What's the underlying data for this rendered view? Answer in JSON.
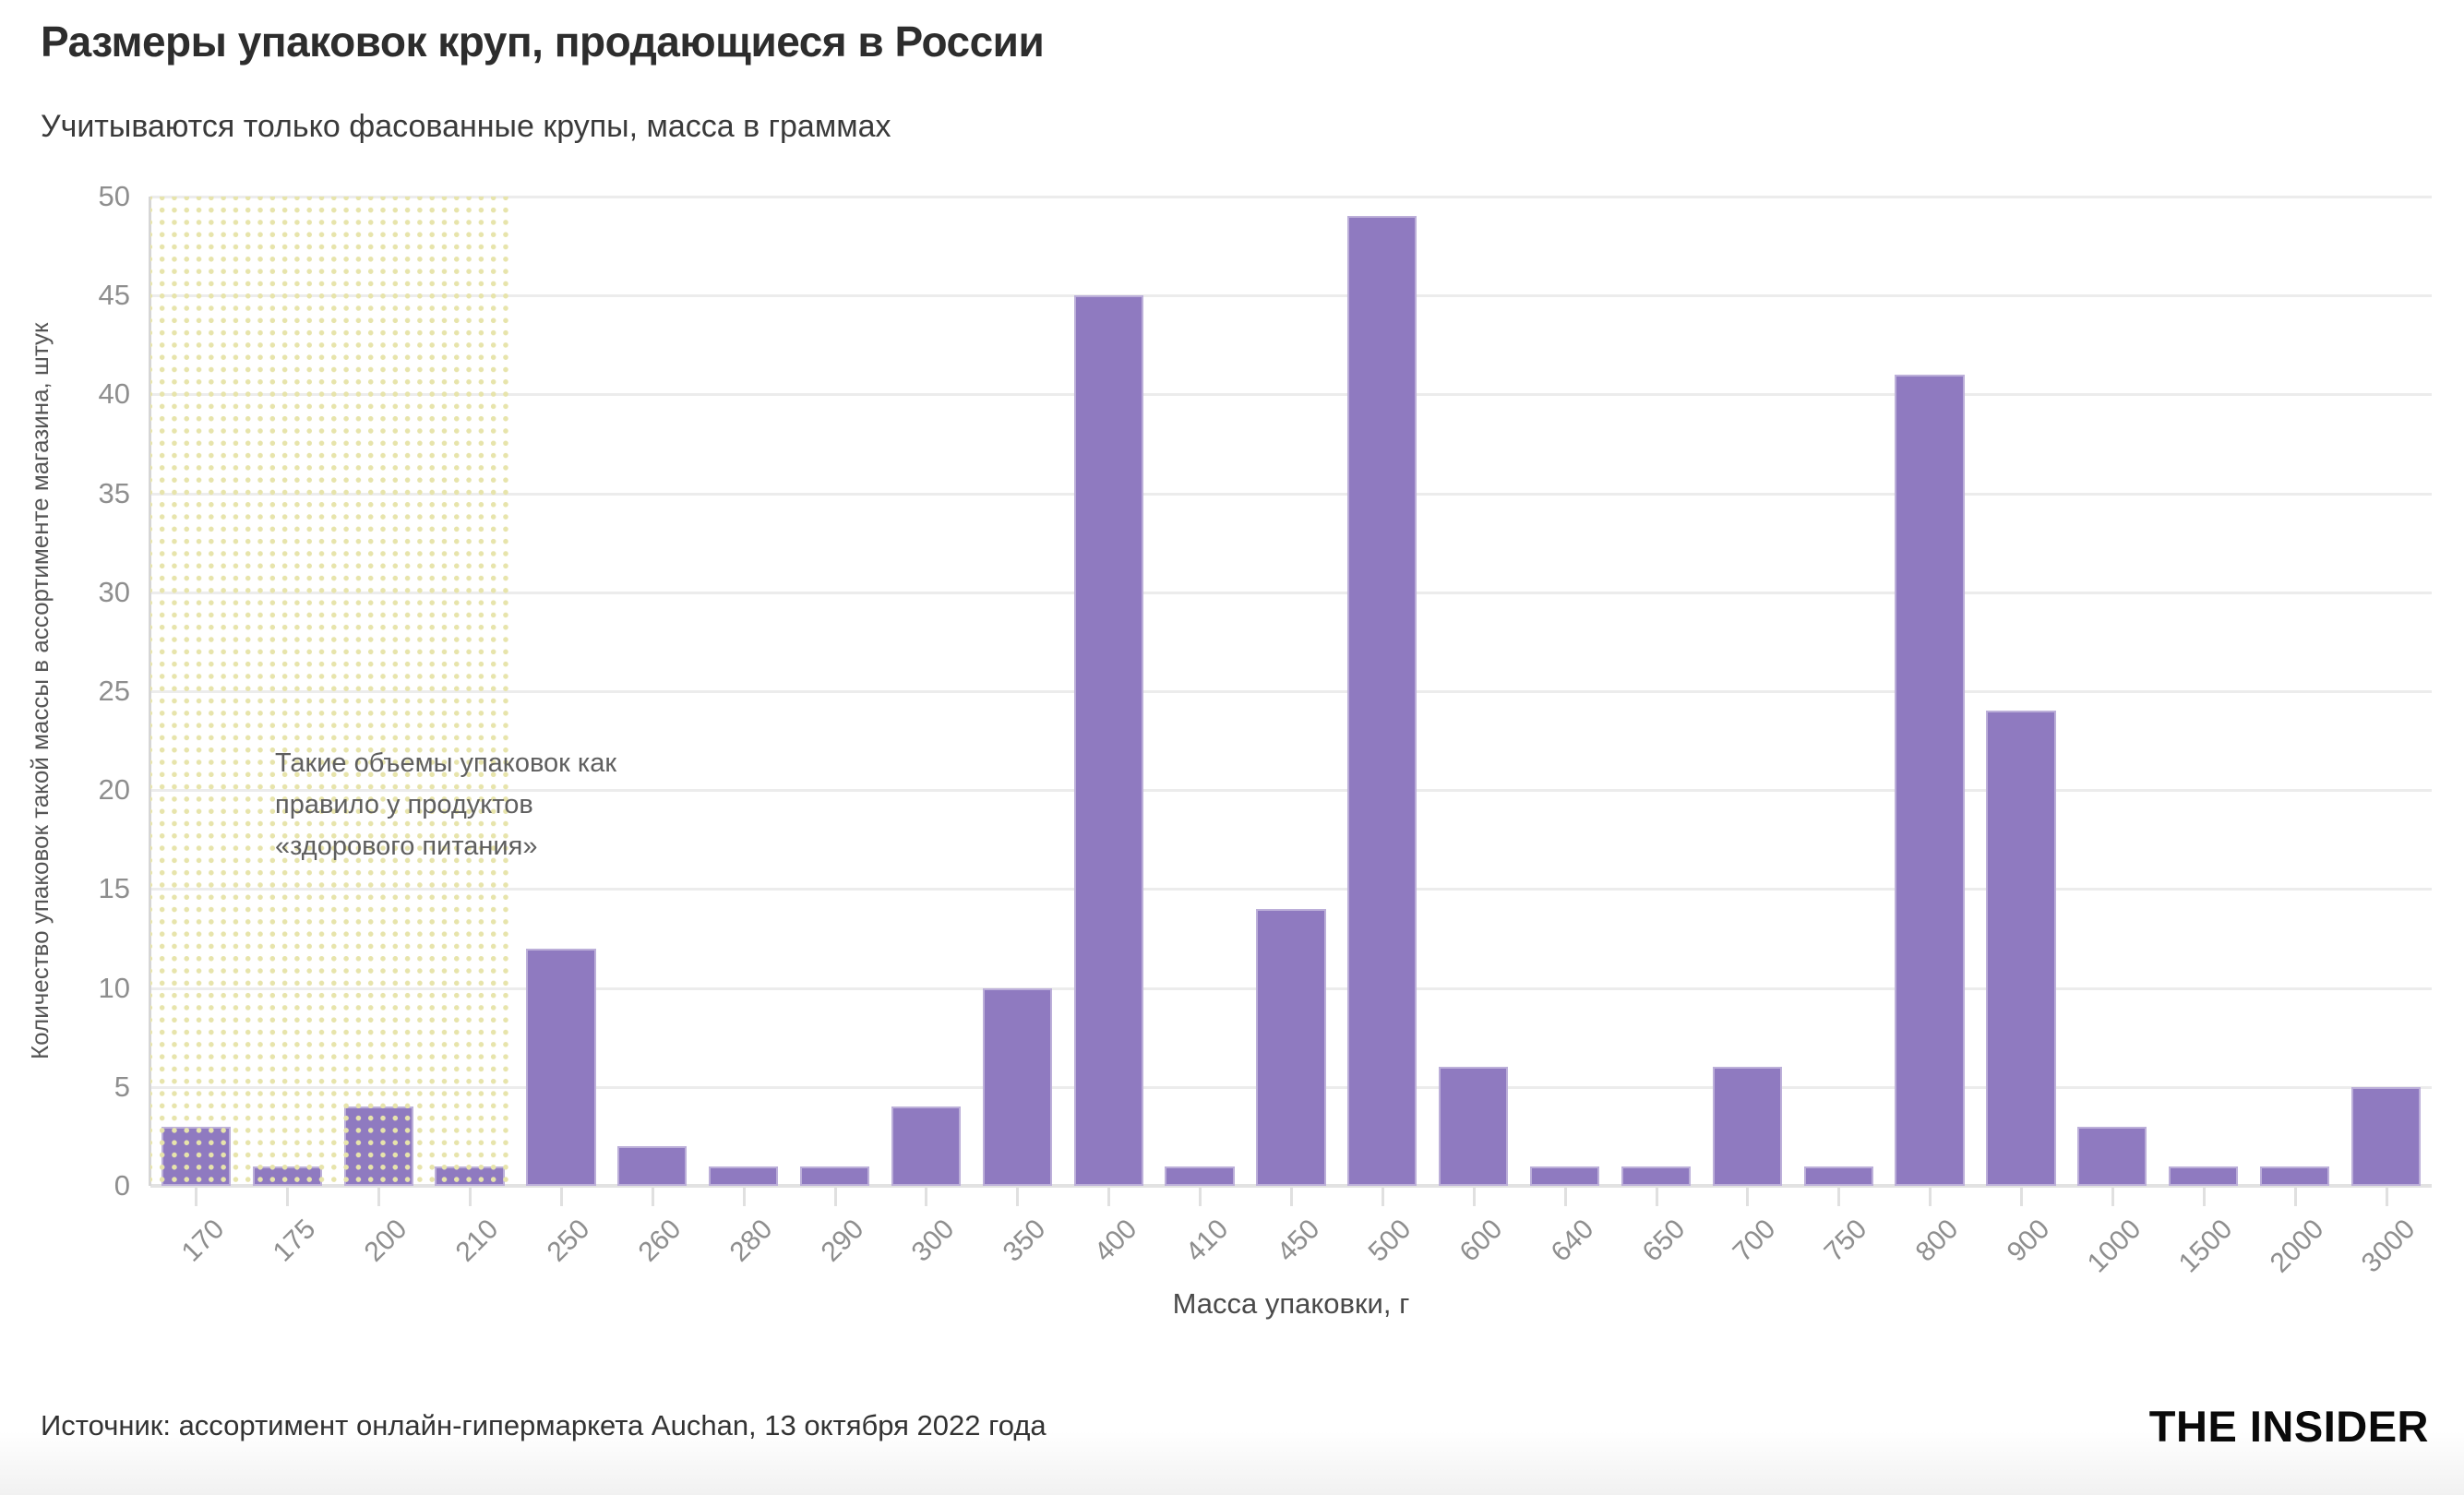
{
  "header": {
    "title": "Размеры упаковок круп, продающиеся в России",
    "subtitle": "Учитываются только фасованные крупы, масса в граммах"
  },
  "chart_data": {
    "type": "bar",
    "categories": [
      "170",
      "175",
      "200",
      "210",
      "250",
      "260",
      "280",
      "290",
      "300",
      "350",
      "400",
      "410",
      "450",
      "500",
      "600",
      "640",
      "650",
      "700",
      "750",
      "800",
      "900",
      "1000",
      "1500",
      "2000",
      "3000"
    ],
    "values": [
      3,
      1,
      4,
      1,
      12,
      2,
      1,
      1,
      4,
      10,
      45,
      1,
      14,
      49,
      6,
      1,
      1,
      6,
      1,
      41,
      24,
      3,
      1,
      1,
      5
    ],
    "title": "Размеры упаковок круп, продающиеся в России",
    "xlabel": "Масса упаковки, г",
    "ylabel": "Количество упаковок такой массы в ассортименте магазина, штук",
    "ylim": [
      0,
      50
    ],
    "ytick_step": 5,
    "grid": true,
    "legend": "none",
    "bar_color": "#8f7ac0",
    "highlight_region": {
      "covers_categories": [
        "170",
        "175",
        "200",
        "210"
      ],
      "pattern": "yellow-dots",
      "dot_color": "#e7e4ab"
    },
    "annotation_text": "Такие объемы упаковок как\nправило у продуктов\n«здорового питания»"
  },
  "footer": {
    "source": "Источник: ассортимент онлайн-гипермаркета Auchan, 13 октября 2022 года",
    "brand": "THE INSIDER"
  }
}
